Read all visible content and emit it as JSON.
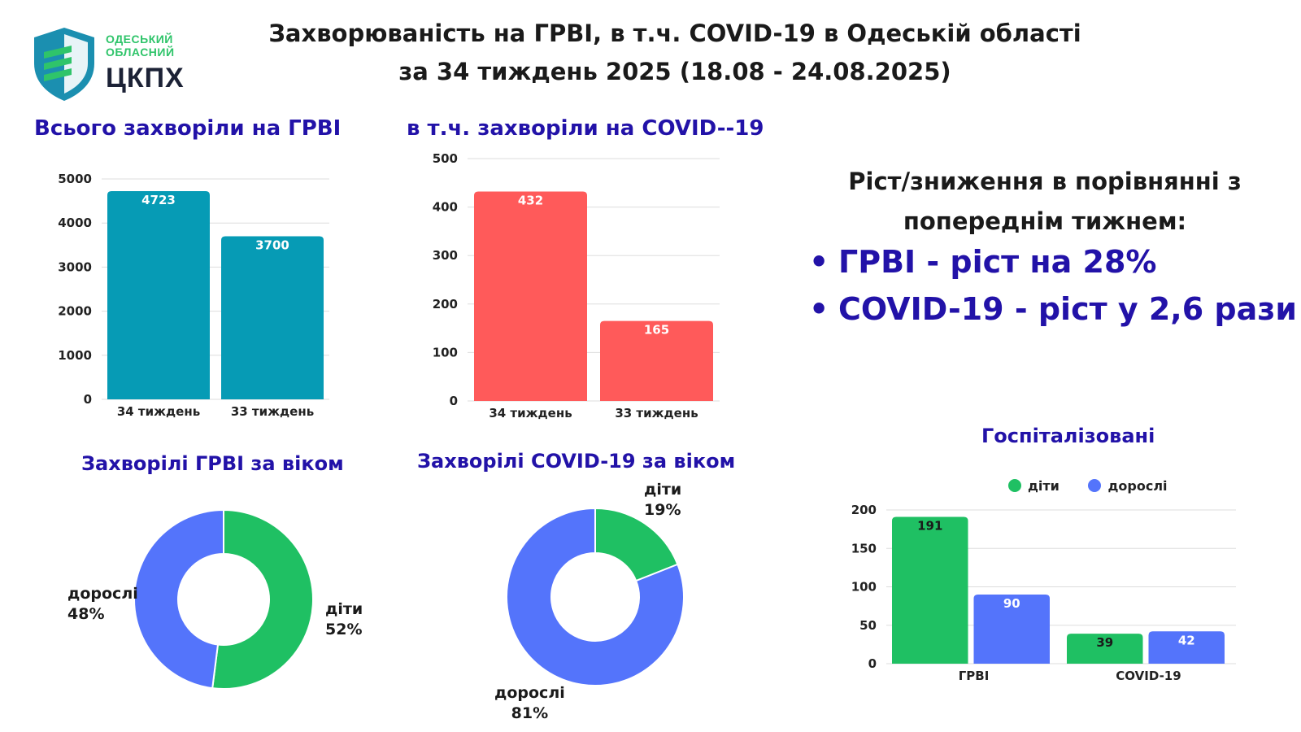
{
  "header": {
    "logo_line1": "ОДЕСЬКИЙ",
    "logo_line2": "ОБЛАСНИЙ",
    "logo_big": "ЦКПХ",
    "title_line1": "Захворюваність на ГРВІ, в т.ч.  COVID-19 в Одеській області",
    "title_line2": "за 34 тиждень 2025 (18.08 - 24.08.2025)"
  },
  "growth": {
    "heading_line1": "Ріст/зниження в порівнянні з",
    "heading_line2": "попереднім тижнем:",
    "items": [
      "ГРВІ - ріст на 28%",
      "COVID-19 - ріст у  2,6 рази"
    ]
  },
  "colors": {
    "teal": "#069bb5",
    "red": "#ff5a5a",
    "green": "#1fc063",
    "blue": "#5474fb",
    "title_blue": "#2212a8"
  },
  "chart_data": [
    {
      "id": "grvi_total",
      "type": "bar",
      "title": "Всього захворіли на ГРВІ",
      "categories": [
        "34 тиждень",
        "33 тиждень"
      ],
      "values": [
        4723,
        3700
      ],
      "ylim": [
        0,
        5000
      ],
      "yticks": [
        0,
        1000,
        2000,
        3000,
        4000,
        5000
      ],
      "color": "#069bb5",
      "grid": true
    },
    {
      "id": "covid_total",
      "type": "bar",
      "title": "в т.ч. захворіли на COVID--19",
      "categories": [
        "34 тиждень",
        "33 тиждень"
      ],
      "values": [
        432,
        165
      ],
      "ylim": [
        0,
        500
      ],
      "yticks": [
        0,
        100,
        200,
        300,
        400,
        500
      ],
      "color": "#ff5a5a",
      "grid": true
    },
    {
      "id": "grvi_age",
      "type": "pie",
      "title": "Захворілі ГРВІ за віком",
      "slices": [
        {
          "label": "діти",
          "value": 52,
          "text": "52%",
          "color": "#1fc063"
        },
        {
          "label": "дорослі",
          "value": 48,
          "text": "48%",
          "color": "#5474fb"
        }
      ]
    },
    {
      "id": "covid_age",
      "type": "pie",
      "title": "Захворілі COVID-19 за віком",
      "slices": [
        {
          "label": "діти",
          "value": 19,
          "text": "19%",
          "color": "#1fc063"
        },
        {
          "label": "дорослі",
          "value": 81,
          "text": "81%",
          "color": "#5474fb"
        }
      ]
    },
    {
      "id": "hospitalized",
      "type": "bar",
      "title": "Госпіталізовані",
      "categories": [
        "ГРВІ",
        "COVID-19"
      ],
      "series": [
        {
          "name": "діти",
          "values": [
            191,
            39
          ],
          "color": "#1fc063"
        },
        {
          "name": "дорослі",
          "values": [
            90,
            42
          ],
          "color": "#5474fb"
        }
      ],
      "ylim": [
        0,
        200
      ],
      "yticks": [
        0,
        50,
        100,
        150,
        200
      ],
      "legend": "top",
      "grid": true
    }
  ]
}
